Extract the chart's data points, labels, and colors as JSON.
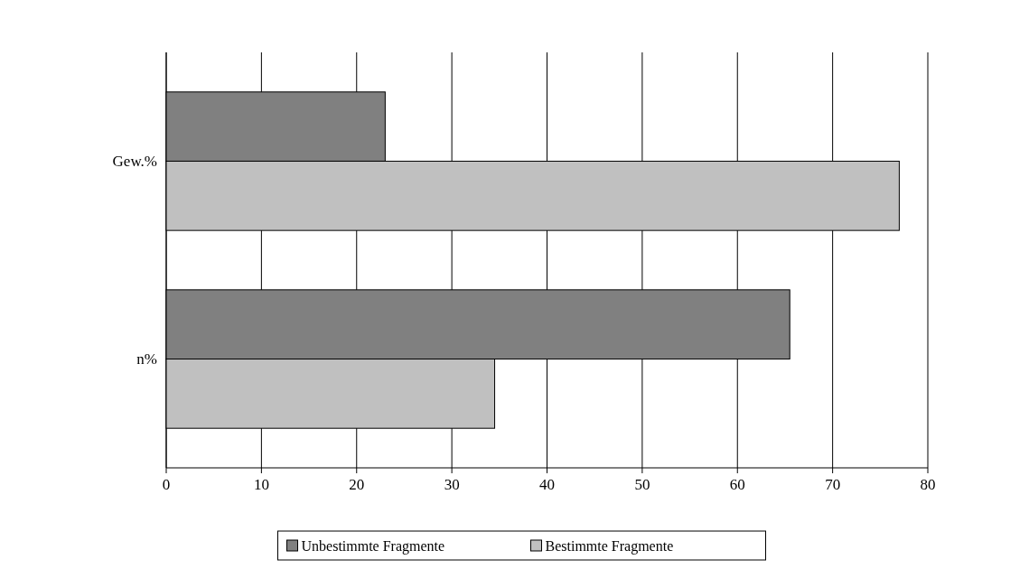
{
  "chart_data": {
    "type": "bar",
    "orientation": "horizontal",
    "categories": [
      "Gew.%",
      "n%"
    ],
    "series": [
      {
        "name": "Unbestimmte Fragmente",
        "color": "#808080",
        "values": [
          23,
          65.5
        ]
      },
      {
        "name": "Bestimmte Fragmente",
        "color": "#c0c0c0",
        "values": [
          77,
          34.5
        ]
      }
    ],
    "xlim": [
      0,
      80
    ],
    "xticks": [
      0,
      10,
      20,
      30,
      40,
      50,
      60,
      70,
      80
    ],
    "grid": "x",
    "legend": "bottom"
  }
}
